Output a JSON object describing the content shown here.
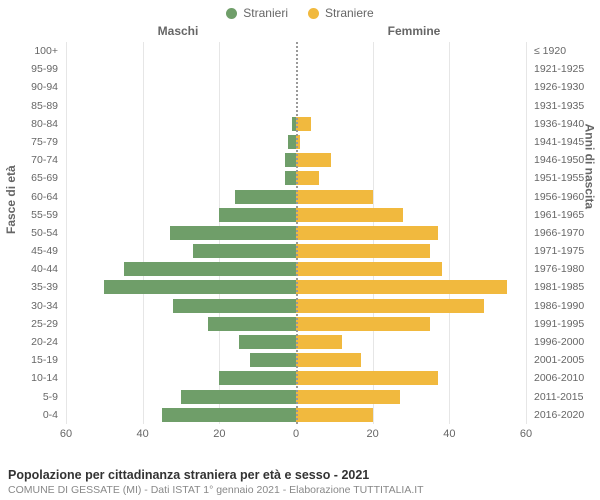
{
  "legend": {
    "male": {
      "label": "Stranieri",
      "color": "#6f9e69"
    },
    "female": {
      "label": "Straniere",
      "color": "#f1b93e"
    }
  },
  "headers": {
    "left": "Maschi",
    "right": "Femmine"
  },
  "axis_titles": {
    "left": "Fasce di età",
    "right": "Anni di nascita"
  },
  "chart": {
    "type": "pyramid-bar",
    "x_max": 60,
    "x_ticks": [
      60,
      40,
      20,
      0,
      20,
      40,
      60
    ],
    "bar_colors": {
      "male": "#6f9e69",
      "female": "#f1b93e"
    },
    "grid_color": "#e6e6e6",
    "background_color": "#ffffff",
    "rows": [
      {
        "age": "100+",
        "birth": "≤ 1920",
        "m": 0,
        "f": 0
      },
      {
        "age": "95-99",
        "birth": "1921-1925",
        "m": 0,
        "f": 0
      },
      {
        "age": "90-94",
        "birth": "1926-1930",
        "m": 0,
        "f": 0
      },
      {
        "age": "85-89",
        "birth": "1931-1935",
        "m": 0,
        "f": 0
      },
      {
        "age": "80-84",
        "birth": "1936-1940",
        "m": 1,
        "f": 4
      },
      {
        "age": "75-79",
        "birth": "1941-1945",
        "m": 2,
        "f": 1
      },
      {
        "age": "70-74",
        "birth": "1946-1950",
        "m": 3,
        "f": 9
      },
      {
        "age": "65-69",
        "birth": "1951-1955",
        "m": 3,
        "f": 6
      },
      {
        "age": "60-64",
        "birth": "1956-1960",
        "m": 16,
        "f": 20
      },
      {
        "age": "55-59",
        "birth": "1961-1965",
        "m": 20,
        "f": 28
      },
      {
        "age": "50-54",
        "birth": "1966-1970",
        "m": 33,
        "f": 37
      },
      {
        "age": "45-49",
        "birth": "1971-1975",
        "m": 27,
        "f": 35
      },
      {
        "age": "40-44",
        "birth": "1976-1980",
        "m": 45,
        "f": 38
      },
      {
        "age": "35-39",
        "birth": "1981-1985",
        "m": 50,
        "f": 55
      },
      {
        "age": "30-34",
        "birth": "1986-1990",
        "m": 32,
        "f": 49
      },
      {
        "age": "25-29",
        "birth": "1991-1995",
        "m": 23,
        "f": 35
      },
      {
        "age": "20-24",
        "birth": "1996-2000",
        "m": 15,
        "f": 12
      },
      {
        "age": "15-19",
        "birth": "2001-2005",
        "m": 12,
        "f": 17
      },
      {
        "age": "10-14",
        "birth": "2006-2010",
        "m": 20,
        "f": 37
      },
      {
        "age": "5-9",
        "birth": "2011-2015",
        "m": 30,
        "f": 27
      },
      {
        "age": "0-4",
        "birth": "2016-2020",
        "m": 35,
        "f": 20
      }
    ]
  },
  "footer": {
    "title": "Popolazione per cittadinanza straniera per età e sesso - 2021",
    "subtitle": "COMUNE DI GESSATE (MI) - Dati ISTAT 1° gennaio 2021 - Elaborazione TUTTITALIA.IT"
  }
}
